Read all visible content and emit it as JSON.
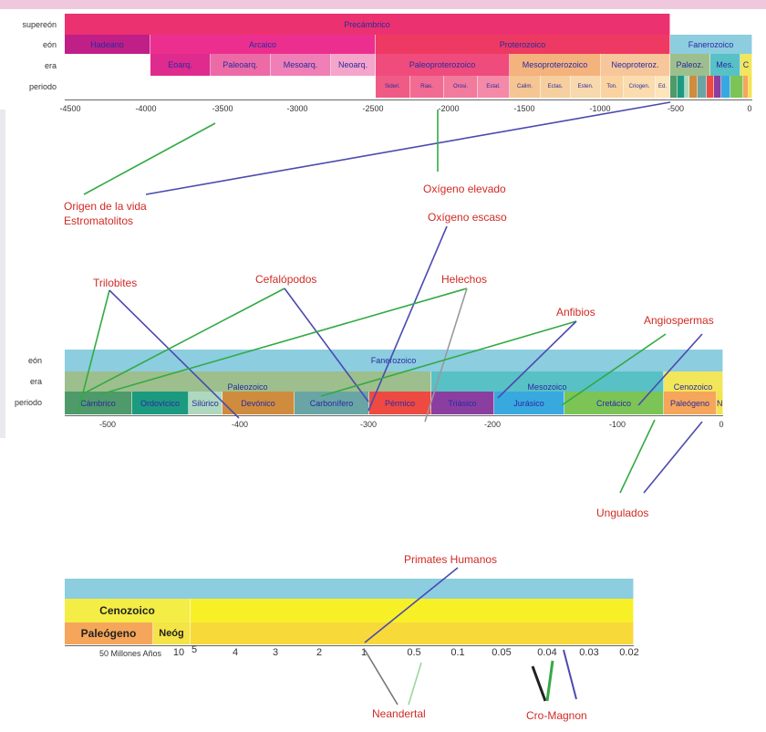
{
  "colors": {
    "title_red": "#d02a24",
    "arrow_green": "#33aa44",
    "arrow_blue": "#4a4ab0"
  },
  "timeline1": {
    "row_labels": [
      "supereón",
      "eón",
      "era",
      "periodo"
    ],
    "supereon": "Precámbrico",
    "eons": [
      "Hadeano",
      "Arcaico",
      "Proterozoico",
      "Fanerozoico"
    ],
    "eras": [
      "Eoarq.",
      "Paleoarq.",
      "Mesoarq.",
      "Neoarq.",
      "Paleoproterozoico",
      "Mesoproterozoico",
      "Neoproteroz.",
      "Paleoz.",
      "Mes.",
      "C"
    ],
    "periods": [
      "Sideri.",
      "Rias.",
      "Orosi.",
      "Estat.",
      "Calim.",
      "Ectas.",
      "Esten.",
      "Ton.",
      "Criogen.",
      "Ed."
    ],
    "ticks": [
      "-4500",
      "-4000",
      "-3500",
      "-3000",
      "-2500",
      "-2000",
      "-1500",
      "-1000",
      "-500",
      "0"
    ]
  },
  "timeline2": {
    "row_labels": [
      "eón",
      "era",
      "periodo"
    ],
    "eon": "Fanerozoico",
    "eras": [
      "Paleozoico",
      "Mesozoico",
      "Cenozoico"
    ],
    "periods": [
      "Cámbrico",
      "Ordovícico",
      "Silúrico",
      "Devónico",
      "Carbonífero",
      "Pérmico",
      "Triásico",
      "Jurásico",
      "Cretácico",
      "Paleógeno",
      "Neóg"
    ],
    "ticks": [
      "-500",
      "-400",
      "-300",
      "-200",
      "-100",
      "0"
    ]
  },
  "timeline3": {
    "era": "Cenozoico",
    "periods": [
      "Paleógeno",
      "Neóg"
    ],
    "ticks": [
      "50 Millones Años",
      "10",
      "5",
      "4",
      "3",
      "2",
      "1",
      "0.5",
      "0.1",
      "0.05",
      "0.04",
      "0.03",
      "0.02"
    ]
  },
  "annotations": {
    "origin_line1": "Origen de la vida",
    "origin_line2": "Estromatolitos",
    "oxygen_high": "Oxígeno elevado",
    "oxygen_low": "Oxígeno escaso",
    "trilobites": "Trilobites",
    "cephalopods": "Cefalópodos",
    "ferns": "Helechos",
    "amphibians": "Anfibios",
    "angiosperms": "Angiospermas",
    "ungulates": "Ungulados",
    "human_primates": "Primates Humanos",
    "neanderthal": "Neandertal",
    "cromagnon": "Cro-Magnon"
  }
}
